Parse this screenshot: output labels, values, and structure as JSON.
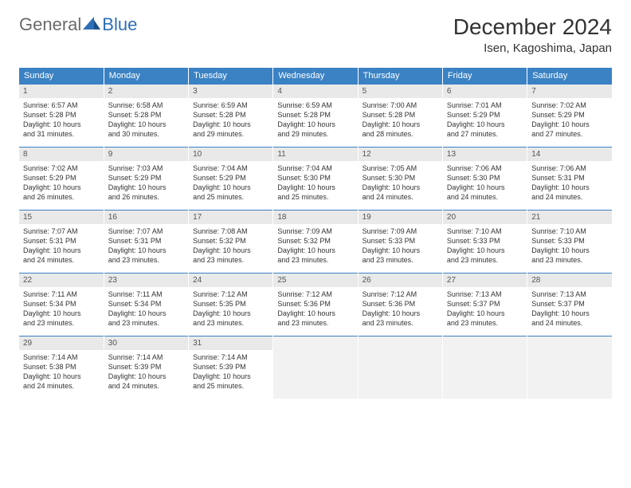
{
  "logo": {
    "t1": "General",
    "t2": "Blue"
  },
  "title": "December 2024",
  "subtitle": "Isen, Kagoshima, Japan",
  "colors": {
    "headerBlue": "#3a82c4",
    "logoBlue": "#2d6fb6",
    "logoGray": "#6a6a6a",
    "dayNumBg": "#e9e9e9",
    "emptyBg": "#f2f2f2"
  },
  "weekdays": [
    "Sunday",
    "Monday",
    "Tuesday",
    "Wednesday",
    "Thursday",
    "Friday",
    "Saturday"
  ],
  "days": [
    {
      "n": 1,
      "sr": "6:57 AM",
      "ss": "5:28 PM",
      "dh": 10,
      "dm": 31
    },
    {
      "n": 2,
      "sr": "6:58 AM",
      "ss": "5:28 PM",
      "dh": 10,
      "dm": 30
    },
    {
      "n": 3,
      "sr": "6:59 AM",
      "ss": "5:28 PM",
      "dh": 10,
      "dm": 29
    },
    {
      "n": 4,
      "sr": "6:59 AM",
      "ss": "5:28 PM",
      "dh": 10,
      "dm": 29
    },
    {
      "n": 5,
      "sr": "7:00 AM",
      "ss": "5:28 PM",
      "dh": 10,
      "dm": 28
    },
    {
      "n": 6,
      "sr": "7:01 AM",
      "ss": "5:29 PM",
      "dh": 10,
      "dm": 27
    },
    {
      "n": 7,
      "sr": "7:02 AM",
      "ss": "5:29 PM",
      "dh": 10,
      "dm": 27
    },
    {
      "n": 8,
      "sr": "7:02 AM",
      "ss": "5:29 PM",
      "dh": 10,
      "dm": 26
    },
    {
      "n": 9,
      "sr": "7:03 AM",
      "ss": "5:29 PM",
      "dh": 10,
      "dm": 26
    },
    {
      "n": 10,
      "sr": "7:04 AM",
      "ss": "5:29 PM",
      "dh": 10,
      "dm": 25
    },
    {
      "n": 11,
      "sr": "7:04 AM",
      "ss": "5:30 PM",
      "dh": 10,
      "dm": 25
    },
    {
      "n": 12,
      "sr": "7:05 AM",
      "ss": "5:30 PM",
      "dh": 10,
      "dm": 24
    },
    {
      "n": 13,
      "sr": "7:06 AM",
      "ss": "5:30 PM",
      "dh": 10,
      "dm": 24
    },
    {
      "n": 14,
      "sr": "7:06 AM",
      "ss": "5:31 PM",
      "dh": 10,
      "dm": 24
    },
    {
      "n": 15,
      "sr": "7:07 AM",
      "ss": "5:31 PM",
      "dh": 10,
      "dm": 24
    },
    {
      "n": 16,
      "sr": "7:07 AM",
      "ss": "5:31 PM",
      "dh": 10,
      "dm": 23
    },
    {
      "n": 17,
      "sr": "7:08 AM",
      "ss": "5:32 PM",
      "dh": 10,
      "dm": 23
    },
    {
      "n": 18,
      "sr": "7:09 AM",
      "ss": "5:32 PM",
      "dh": 10,
      "dm": 23
    },
    {
      "n": 19,
      "sr": "7:09 AM",
      "ss": "5:33 PM",
      "dh": 10,
      "dm": 23
    },
    {
      "n": 20,
      "sr": "7:10 AM",
      "ss": "5:33 PM",
      "dh": 10,
      "dm": 23
    },
    {
      "n": 21,
      "sr": "7:10 AM",
      "ss": "5:33 PM",
      "dh": 10,
      "dm": 23
    },
    {
      "n": 22,
      "sr": "7:11 AM",
      "ss": "5:34 PM",
      "dh": 10,
      "dm": 23
    },
    {
      "n": 23,
      "sr": "7:11 AM",
      "ss": "5:34 PM",
      "dh": 10,
      "dm": 23
    },
    {
      "n": 24,
      "sr": "7:12 AM",
      "ss": "5:35 PM",
      "dh": 10,
      "dm": 23
    },
    {
      "n": 25,
      "sr": "7:12 AM",
      "ss": "5:36 PM",
      "dh": 10,
      "dm": 23
    },
    {
      "n": 26,
      "sr": "7:12 AM",
      "ss": "5:36 PM",
      "dh": 10,
      "dm": 23
    },
    {
      "n": 27,
      "sr": "7:13 AM",
      "ss": "5:37 PM",
      "dh": 10,
      "dm": 23
    },
    {
      "n": 28,
      "sr": "7:13 AM",
      "ss": "5:37 PM",
      "dh": 10,
      "dm": 24
    },
    {
      "n": 29,
      "sr": "7:14 AM",
      "ss": "5:38 PM",
      "dh": 10,
      "dm": 24
    },
    {
      "n": 30,
      "sr": "7:14 AM",
      "ss": "5:39 PM",
      "dh": 10,
      "dm": 24
    },
    {
      "n": 31,
      "sr": "7:14 AM",
      "ss": "5:39 PM",
      "dh": 10,
      "dm": 25
    }
  ],
  "labels": {
    "sunrise": "Sunrise:",
    "sunset": "Sunset:",
    "daylight": "Daylight:",
    "hours": "hours",
    "and": "and",
    "minutes": "minutes."
  },
  "layout": {
    "firstDayOffset": 0
  }
}
